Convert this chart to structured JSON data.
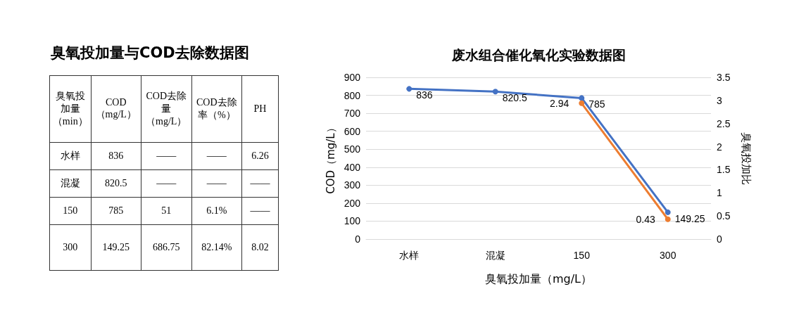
{
  "chart_data": [
    {
      "type": "other",
      "title": "臭氧投加量与COD去除数据图",
      "annotations": [
        "臭氧投加量（min）",
        "COD（mg/L）",
        "COD去除量（mg/L）",
        "COD去除率（%）",
        "PH",
        "水样",
        "836",
        "——",
        "——",
        "6.26",
        "混凝",
        "820.5",
        "——",
        "——",
        "——",
        "150",
        "785",
        "51",
        "6.1%",
        "——",
        "300",
        "149.25",
        "686.75",
        "82.14%",
        "8.02"
      ]
    },
    {
      "type": "line",
      "title": "废水组合催化氧化实验数据图",
      "xlabel": "臭氧投加量（mg/L）",
      "ylabel": "COD（mg/L）",
      "y2label": "臭氧投加比",
      "categories": [
        "水样",
        "混凝",
        "150",
        "300"
      ],
      "series": [
        {
          "color": "#4472c4",
          "values": [
            836,
            820.5,
            785,
            149.25
          ]
        },
        {
          "color": "#ed7d31",
          "axis": "y2",
          "values": [
            null,
            null,
            2.94,
            0.43
          ]
        }
      ],
      "ylim": [
        0,
        900
      ],
      "yticks": [
        0,
        100,
        200,
        300,
        400,
        500,
        600,
        700,
        800,
        900
      ],
      "y2lim": [
        0,
        3.5
      ],
      "y2ticks": [
        0,
        0.5,
        1,
        1.5,
        2,
        2.5,
        3,
        3.5
      ],
      "grid": "y",
      "marker": "circle",
      "line_style": "solid",
      "data_labels": true
    }
  ]
}
